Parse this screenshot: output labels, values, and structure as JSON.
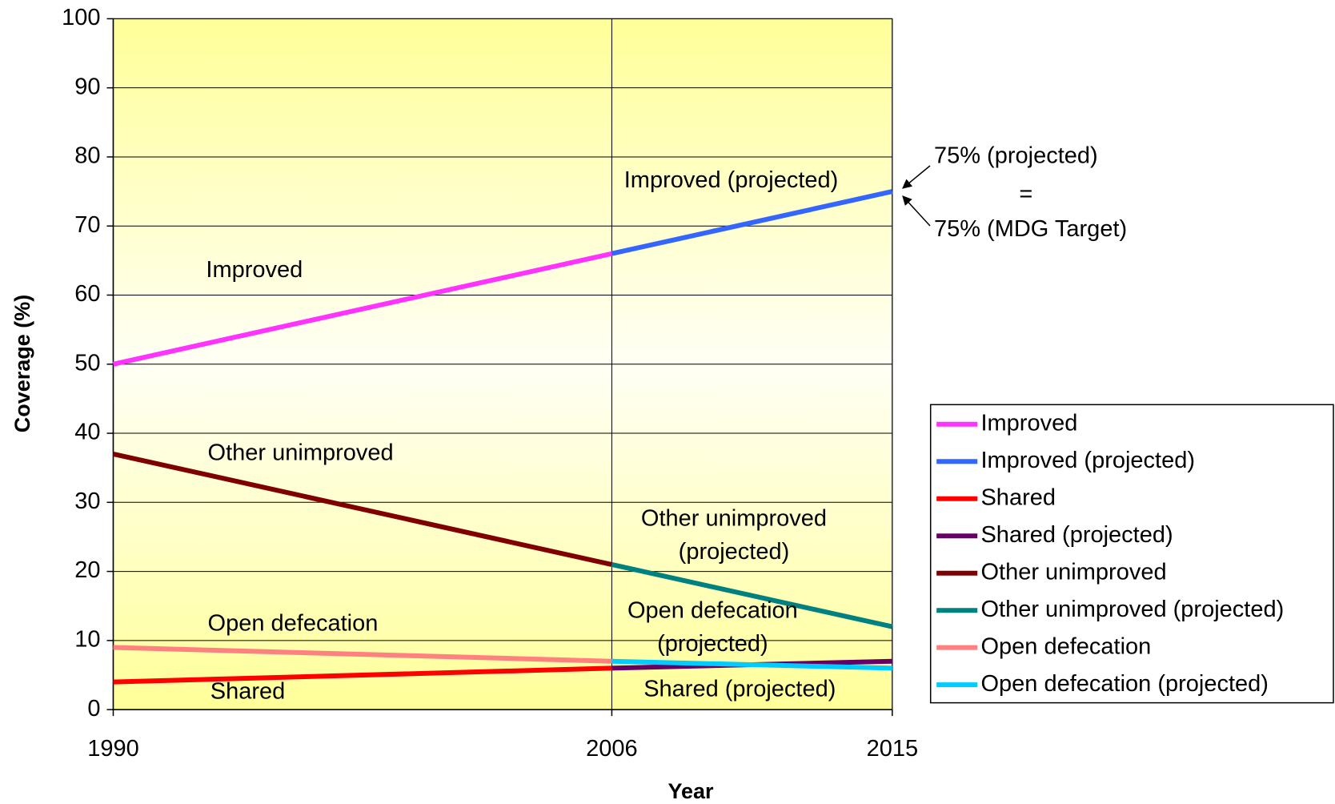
{
  "chart_data": {
    "type": "line",
    "x_label": "Year",
    "y_label": "Coverage (%)",
    "x": [
      1990,
      2006,
      2015
    ],
    "xlim": [
      1990,
      2015
    ],
    "xticks": [
      1990,
      2006,
      2015
    ],
    "ylim": [
      0,
      100
    ],
    "yticks": [
      0,
      10,
      20,
      30,
      40,
      50,
      60,
      70,
      80,
      90,
      100
    ],
    "grid": true,
    "xgrid": true,
    "legend": "right",
    "series": [
      {
        "name": "Improved",
        "color": "#ff33ff",
        "values": [
          50,
          66,
          null
        ]
      },
      {
        "name": "Improved (projected)",
        "color": "#3366ff",
        "values": [
          null,
          66,
          75
        ]
      },
      {
        "name": "Shared",
        "color": "#ff0000",
        "values": [
          4,
          6,
          null
        ]
      },
      {
        "name": "Shared (projected)",
        "color": "#660066",
        "values": [
          null,
          6,
          7
        ]
      },
      {
        "name": "Other unimproved",
        "color": "#800000",
        "values": [
          37,
          21,
          null
        ]
      },
      {
        "name": "Other unimproved (projected)",
        "color": "#008080",
        "values": [
          null,
          21,
          12
        ]
      },
      {
        "name": "Open defecation",
        "color": "#ff8080",
        "values": [
          9,
          7,
          null
        ]
      },
      {
        "name": "Open defecation (projected)",
        "color": "#00ccff",
        "values": [
          null,
          7,
          6
        ]
      }
    ],
    "annotations": [
      {
        "lines": [
          "Improved"
        ]
      },
      {
        "lines": [
          "Improved (projected)"
        ]
      },
      {
        "lines": [
          "Other unimproved"
        ]
      },
      {
        "lines": [
          "Other unimproved",
          "(projected)"
        ]
      },
      {
        "lines": [
          "Open defecation"
        ]
      },
      {
        "lines": [
          "Open defecation",
          "(projected)"
        ]
      },
      {
        "lines": [
          "Shared"
        ]
      },
      {
        "lines": [
          "Shared (projected)"
        ]
      },
      {
        "lines": [
          "75% (projected)"
        ]
      },
      {
        "lines": [
          "="
        ]
      },
      {
        "lines": [
          "75% (MDG Target)"
        ]
      }
    ]
  }
}
